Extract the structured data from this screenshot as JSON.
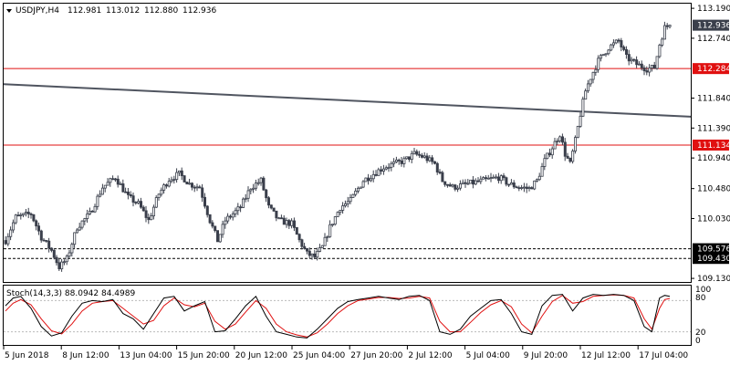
{
  "header": {
    "symbol": "USDJPY,H4",
    "open": "112.981",
    "high": "113.012",
    "low": "112.880",
    "close": "112.936"
  },
  "colors": {
    "bull": "#ffffff",
    "bear": "#3a3f4b",
    "wick": "#3a3f4b",
    "level_line": "#e01010",
    "trend_line": "#505560",
    "stoch_main": "#000000",
    "stoch_signal": "#e01010",
    "label_dark": "#000000",
    "label_red": "#e01010",
    "label_grey": "#3a3f4b"
  },
  "chart_data": {
    "type": "candlestick",
    "price_axis": {
      "range": [
        109.09,
        113.26
      ],
      "ticks": [
        "113.190",
        "112.740",
        "111.840",
        "111.390",
        "110.940",
        "110.480",
        "110.030",
        "109.130"
      ]
    },
    "price_labels": [
      {
        "value": 112.936,
        "text": "112.936",
        "style": "current"
      },
      {
        "value": 112.284,
        "text": "112.284",
        "style": "red"
      },
      {
        "value": 111.134,
        "text": "111.134",
        "style": "red"
      },
      {
        "value": 109.576,
        "text": "109.576",
        "style": "dark"
      },
      {
        "value": 109.43,
        "text": "109.430",
        "style": "dark"
      }
    ],
    "horizontal_levels": [
      {
        "value": 112.284,
        "kind": "solid-red"
      },
      {
        "value": 111.134,
        "kind": "solid-red"
      },
      {
        "value": 109.576,
        "kind": "dashed"
      },
      {
        "value": 109.43,
        "kind": "dashed"
      }
    ],
    "trend_line": {
      "from": {
        "bar": 0,
        "price": 112.05
      },
      "to": {
        "bar": 260,
        "price": 111.56
      }
    },
    "time_labels": [
      "5 Jun 2018",
      "8 Jun 12:00",
      "13 Jun 04:00",
      "15 Jun 20:00",
      "20 Jun 12:00",
      "25 Jun 04:00",
      "27 Jun 20:00",
      "2 Jul 12:00",
      "5 Jul 04:00",
      "9 Jul 20:00",
      "12 Jul 12:00",
      "17 Jul 04:00"
    ],
    "anchors": [
      [
        0,
        109.7
      ],
      [
        4,
        110.05
      ],
      [
        10,
        110.1
      ],
      [
        14,
        109.75
      ],
      [
        18,
        109.55
      ],
      [
        21,
        109.3
      ],
      [
        24,
        109.42
      ],
      [
        28,
        109.9
      ],
      [
        33,
        110.1
      ],
      [
        38,
        110.5
      ],
      [
        43,
        110.65
      ],
      [
        48,
        110.35
      ],
      [
        52,
        110.25
      ],
      [
        56,
        110.0
      ],
      [
        60,
        110.4
      ],
      [
        64,
        110.62
      ],
      [
        68,
        110.7
      ],
      [
        72,
        110.55
      ],
      [
        76,
        110.5
      ],
      [
        80,
        110.0
      ],
      [
        83,
        109.7
      ],
      [
        86,
        110.0
      ],
      [
        92,
        110.2
      ],
      [
        96,
        110.5
      ],
      [
        100,
        110.6
      ],
      [
        103,
        110.2
      ],
      [
        107,
        110.0
      ],
      [
        112,
        109.95
      ],
      [
        115,
        109.7
      ],
      [
        118,
        109.5
      ],
      [
        121,
        109.45
      ],
      [
        124,
        109.6
      ],
      [
        127,
        109.9
      ],
      [
        131,
        110.2
      ],
      [
        135,
        110.3
      ],
      [
        140,
        110.6
      ],
      [
        144,
        110.7
      ],
      [
        148,
        110.8
      ],
      [
        152,
        110.85
      ],
      [
        156,
        110.9
      ],
      [
        160,
        111.0
      ],
      [
        164,
        110.95
      ],
      [
        168,
        110.85
      ],
      [
        171,
        110.6
      ],
      [
        175,
        110.5
      ],
      [
        181,
        110.55
      ],
      [
        187,
        110.6
      ],
      [
        193,
        110.65
      ],
      [
        197,
        110.55
      ],
      [
        201,
        110.5
      ],
      [
        205,
        110.48
      ],
      [
        208,
        110.6
      ],
      [
        211,
        110.9
      ],
      [
        214,
        111.1
      ],
      [
        217,
        111.3
      ],
      [
        219,
        111.0
      ],
      [
        221,
        110.85
      ],
      [
        223,
        111.2
      ],
      [
        225,
        111.6
      ],
      [
        227,
        111.95
      ],
      [
        229,
        112.15
      ],
      [
        232,
        112.4
      ],
      [
        236,
        112.6
      ],
      [
        240,
        112.7
      ],
      [
        243,
        112.45
      ],
      [
        247,
        112.35
      ],
      [
        251,
        112.28
      ],
      [
        254,
        112.3
      ],
      [
        256,
        112.65
      ],
      [
        258,
        112.9
      ],
      [
        260,
        112.94
      ]
    ],
    "stochastic": {
      "label": "Stoch(14,3,3) 88.0942 84.4989",
      "range": [
        0,
        100
      ],
      "levels": [
        80,
        20
      ],
      "level_texts": [
        "80",
        "20"
      ],
      "scale_texts": [
        "100",
        "0"
      ],
      "main_value": 88.0942,
      "signal_value": 84.4989,
      "main": [
        [
          0,
          70
        ],
        [
          3,
          85
        ],
        [
          6,
          88
        ],
        [
          10,
          65
        ],
        [
          14,
          30
        ],
        [
          18,
          12
        ],
        [
          22,
          18
        ],
        [
          26,
          50
        ],
        [
          30,
          75
        ],
        [
          34,
          80
        ],
        [
          38,
          78
        ],
        [
          42,
          82
        ],
        [
          46,
          55
        ],
        [
          50,
          45
        ],
        [
          54,
          25
        ],
        [
          58,
          55
        ],
        [
          62,
          85
        ],
        [
          66,
          88
        ],
        [
          70,
          60
        ],
        [
          74,
          70
        ],
        [
          78,
          78
        ],
        [
          82,
          20
        ],
        [
          86,
          22
        ],
        [
          90,
          45
        ],
        [
          94,
          70
        ],
        [
          98,
          88
        ],
        [
          102,
          50
        ],
        [
          106,
          20
        ],
        [
          110,
          15
        ],
        [
          114,
          10
        ],
        [
          118,
          8
        ],
        [
          122,
          25
        ],
        [
          126,
          45
        ],
        [
          130,
          65
        ],
        [
          134,
          78
        ],
        [
          138,
          82
        ],
        [
          142,
          85
        ],
        [
          146,
          88
        ],
        [
          150,
          85
        ],
        [
          154,
          82
        ],
        [
          158,
          88
        ],
        [
          162,
          90
        ],
        [
          166,
          80
        ],
        [
          170,
          20
        ],
        [
          174,
          15
        ],
        [
          178,
          25
        ],
        [
          182,
          50
        ],
        [
          186,
          65
        ],
        [
          190,
          80
        ],
        [
          194,
          82
        ],
        [
          198,
          55
        ],
        [
          202,
          20
        ],
        [
          206,
          15
        ],
        [
          210,
          70
        ],
        [
          214,
          90
        ],
        [
          218,
          92
        ],
        [
          222,
          60
        ],
        [
          226,
          85
        ],
        [
          230,
          92
        ],
        [
          234,
          90
        ],
        [
          238,
          92
        ],
        [
          242,
          90
        ],
        [
          246,
          80
        ],
        [
          250,
          30
        ],
        [
          253,
          20
        ],
        [
          256,
          85
        ],
        [
          258,
          90
        ],
        [
          260,
          88
        ]
      ],
      "signal": [
        [
          0,
          60
        ],
        [
          3,
          75
        ],
        [
          6,
          82
        ],
        [
          10,
          72
        ],
        [
          14,
          45
        ],
        [
          18,
          22
        ],
        [
          22,
          16
        ],
        [
          26,
          35
        ],
        [
          30,
          60
        ],
        [
          34,
          75
        ],
        [
          38,
          78
        ],
        [
          42,
          80
        ],
        [
          46,
          65
        ],
        [
          50,
          50
        ],
        [
          54,
          35
        ],
        [
          58,
          42
        ],
        [
          62,
          70
        ],
        [
          66,
          85
        ],
        [
          70,
          72
        ],
        [
          74,
          68
        ],
        [
          78,
          75
        ],
        [
          82,
          40
        ],
        [
          86,
          25
        ],
        [
          90,
          35
        ],
        [
          94,
          58
        ],
        [
          98,
          80
        ],
        [
          102,
          65
        ],
        [
          106,
          35
        ],
        [
          110,
          20
        ],
        [
          114,
          14
        ],
        [
          118,
          10
        ],
        [
          122,
          18
        ],
        [
          126,
          35
        ],
        [
          130,
          55
        ],
        [
          134,
          70
        ],
        [
          138,
          80
        ],
        [
          142,
          83
        ],
        [
          146,
          86
        ],
        [
          150,
          86
        ],
        [
          154,
          84
        ],
        [
          158,
          85
        ],
        [
          162,
          88
        ],
        [
          166,
          85
        ],
        [
          170,
          40
        ],
        [
          174,
          20
        ],
        [
          178,
          20
        ],
        [
          182,
          38
        ],
        [
          186,
          57
        ],
        [
          190,
          72
        ],
        [
          194,
          80
        ],
        [
          198,
          68
        ],
        [
          202,
          35
        ],
        [
          206,
          18
        ],
        [
          210,
          50
        ],
        [
          214,
          78
        ],
        [
          218,
          90
        ],
        [
          222,
          75
        ],
        [
          226,
          78
        ],
        [
          230,
          88
        ],
        [
          234,
          90
        ],
        [
          238,
          91
        ],
        [
          242,
          90
        ],
        [
          246,
          85
        ],
        [
          250,
          45
        ],
        [
          253,
          25
        ],
        [
          256,
          65
        ],
        [
          258,
          82
        ],
        [
          260,
          84
        ]
      ]
    }
  }
}
